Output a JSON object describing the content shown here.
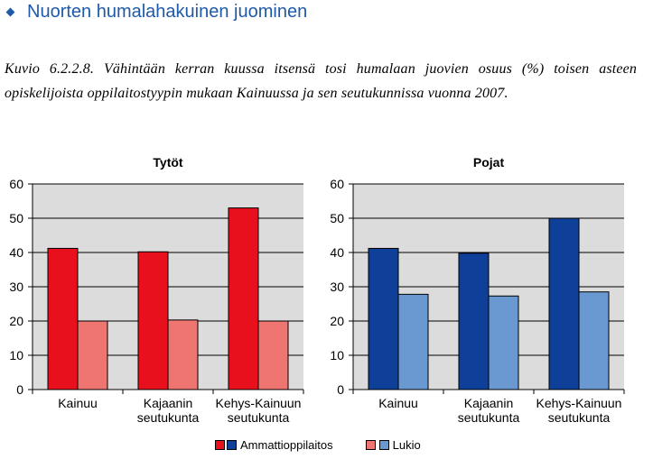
{
  "section_heading": "Nuorten humalahakuinen juominen",
  "caption": "Kuvio 6.2.2.8. Vähintään kerran kuussa itsensä tosi humalaan juovien osuus (%) toisen asteen opiskelijoista oppilaitostyypin mukaan Kainuussa ja sen seutukunnissa vuonna 2007.",
  "colors": {
    "girls_ammatti": "#e8101c",
    "girls_lukio": "#ef7571",
    "boys_ammatti": "#0e3f99",
    "boys_lukio": "#6a99d2",
    "plot_background": "#dcdcdc",
    "gridline": "#000000"
  },
  "legend": {
    "ammatti_label": "Ammattioppilaitos",
    "lukio_label": "Lukio"
  },
  "chart_data": [
    {
      "type": "bar",
      "title": "Tytöt",
      "categories": [
        [
          "Kainuu"
        ],
        [
          "Kajaanin",
          "seutukunta"
        ],
        [
          "Kehys-Kainuun",
          "seutukunta"
        ]
      ],
      "series": [
        {
          "name": "Ammattioppilaitos",
          "values": [
            41.2,
            40.2,
            53.0
          ],
          "color": "#e8101c"
        },
        {
          "name": "Lukio",
          "values": [
            20.0,
            20.3,
            20.0
          ],
          "color": "#ef7571"
        }
      ],
      "ylim": [
        0,
        60
      ],
      "yticks": [
        0,
        10,
        20,
        30,
        40,
        50,
        60
      ],
      "xlabel": "",
      "ylabel": "",
      "grid": true,
      "legend_position": "bottom"
    },
    {
      "type": "bar",
      "title": "Pojat",
      "categories": [
        [
          "Kainuu"
        ],
        [
          "Kajaanin",
          "seutukunta"
        ],
        [
          "Kehys-Kainuun",
          "seutukunta"
        ]
      ],
      "series": [
        {
          "name": "Ammattioppilaitos",
          "values": [
            41.2,
            39.8,
            50.0
          ],
          "color": "#0e3f99"
        },
        {
          "name": "Lukio",
          "values": [
            27.8,
            27.3,
            28.5
          ],
          "color": "#6a99d2"
        }
      ],
      "ylim": [
        0,
        60
      ],
      "yticks": [
        0,
        10,
        20,
        30,
        40,
        50,
        60
      ],
      "xlabel": "",
      "ylabel": "",
      "grid": true,
      "legend_position": "bottom"
    }
  ]
}
